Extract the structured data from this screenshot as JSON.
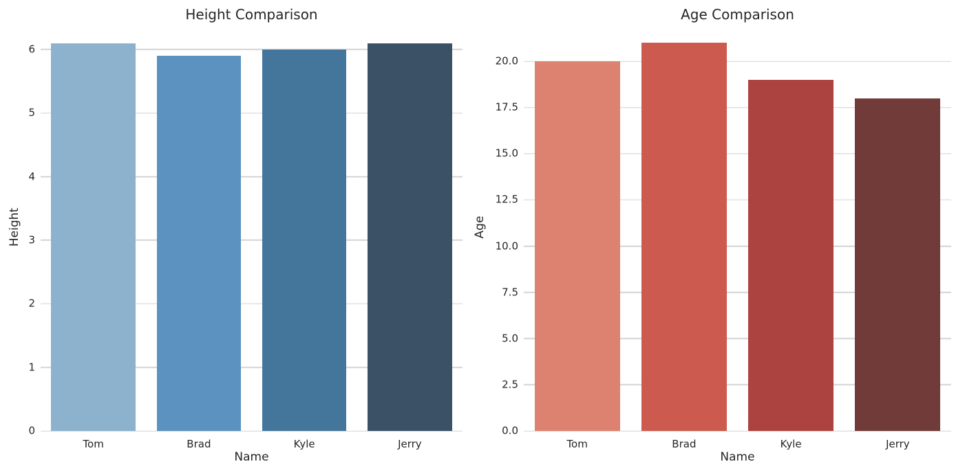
{
  "figure": {
    "background": "#ffffff",
    "text_color": "#262626",
    "grid_color": "#d4d4d4"
  },
  "chart_data": [
    {
      "type": "bar",
      "title": "Height Comparison",
      "xlabel": "Name",
      "ylabel": "Height",
      "categories": [
        "Tom",
        "Brad",
        "Kyle",
        "Jerry"
      ],
      "values": [
        6.1,
        5.9,
        6.0,
        6.1
      ],
      "bar_colors": [
        "#8db2ce",
        "#5b92bf",
        "#44769c",
        "#3b5166"
      ],
      "ylim": [
        0,
        6.41
      ],
      "yticks": [
        0,
        1,
        2,
        3,
        4,
        5,
        6
      ],
      "ytick_labels": [
        "0",
        "1",
        "2",
        "3",
        "4",
        "5",
        "6"
      ],
      "bar_fraction": 0.8,
      "grid": true,
      "legend": "none"
    },
    {
      "type": "bar",
      "title": "Age Comparison",
      "xlabel": "Name",
      "ylabel": "Age",
      "categories": [
        "Tom",
        "Brad",
        "Kyle",
        "Jerry"
      ],
      "values": [
        20,
        21,
        19,
        18
      ],
      "bar_colors": [
        "#dd8170",
        "#cd5a4e",
        "#ad4340",
        "#703b38"
      ],
      "ylim": [
        0,
        22.05
      ],
      "yticks": [
        0,
        2.5,
        5,
        7.5,
        10,
        12.5,
        15,
        17.5,
        20
      ],
      "ytick_labels": [
        "0.0",
        "2.5",
        "5.0",
        "7.5",
        "10.0",
        "12.5",
        "15.0",
        "17.5",
        "20.0"
      ],
      "bar_fraction": 0.8,
      "grid": true,
      "legend": "none"
    }
  ]
}
